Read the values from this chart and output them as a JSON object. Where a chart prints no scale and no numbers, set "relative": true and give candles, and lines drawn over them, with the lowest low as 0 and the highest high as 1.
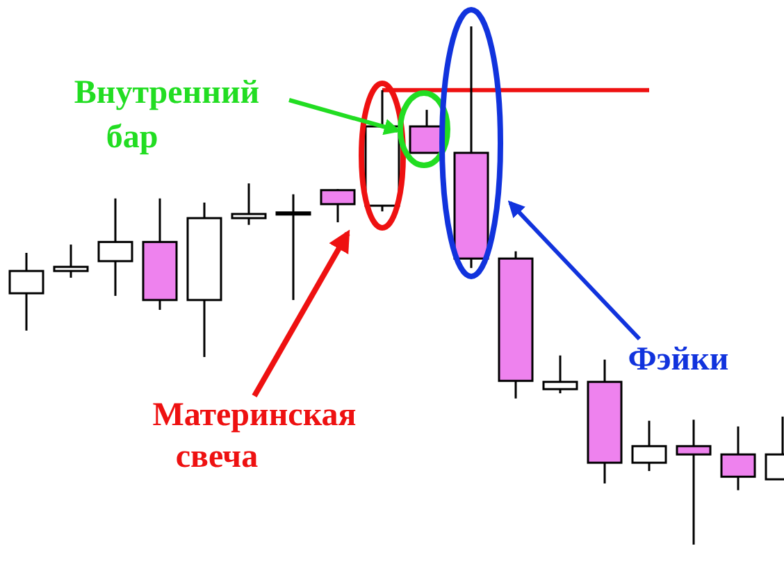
{
  "chart_data": {
    "type": "candlestick",
    "relative": true,
    "categories": [
      null,
      null,
      null,
      null,
      null,
      null,
      null,
      null,
      null,
      null,
      null,
      null,
      null,
      null,
      null,
      null,
      null,
      null
    ],
    "ohlc": [
      [
        0.485,
        0.563,
        0.413,
        0.528
      ],
      [
        0.528,
        0.579,
        0.515,
        0.536
      ],
      [
        0.547,
        0.668,
        0.48,
        0.584
      ],
      [
        0.584,
        0.668,
        0.453,
        0.472
      ],
      [
        0.472,
        0.66,
        0.362,
        0.63
      ],
      [
        0.63,
        0.697,
        0.617,
        0.638
      ],
      [
        0.641,
        0.676,
        0.472,
        0.641
      ],
      [
        0.684,
        0.686,
        0.622,
        0.657
      ],
      [
        0.654,
        0.877,
        0.643,
        0.807
      ],
      [
        0.807,
        0.839,
        0.756,
        0.756
      ],
      [
        0.756,
        1,
        0.534,
        0.552
      ],
      [
        0.552,
        0.566,
        0.282,
        0.316
      ],
      [
        0.3,
        0.365,
        0.292,
        0.314
      ],
      [
        0.314,
        0.357,
        0.118,
        0.158
      ],
      [
        0.158,
        0.239,
        0.142,
        0.19
      ],
      [
        0.19,
        0.241,
        0,
        0.174
      ],
      [
        0.174,
        0.228,
        0.105,
        0.131
      ],
      [
        0.126,
        0.247,
        0.126,
        0.174
      ]
    ],
    "colors": [
      "#ffffff",
      "#ffffff",
      "#ffffff",
      "#ee82ee",
      "#ffffff",
      "#ffffff",
      "#ffffff",
      "#ee82ee",
      "#ffffff",
      "#ee82ee",
      "#ee82ee",
      "#ee82ee",
      "#ffffff",
      "#ee82ee",
      "#ffffff",
      "#ee82ee",
      "#ee82ee",
      "#ffffff"
    ],
    "series": [
      {
        "type": "line",
        "color": "#ee1111",
        "values": [
          null,
          null,
          null,
          null,
          null,
          null,
          null,
          null,
          0.877,
          0.877,
          0.877,
          0.877,
          0.877,
          0.877,
          0.877,
          null,
          null,
          null
        ]
      }
    ],
    "annotations": [
      "Внутренний\nбар",
      "Материнская\nсвеча",
      "Фэйки"
    ]
  }
}
